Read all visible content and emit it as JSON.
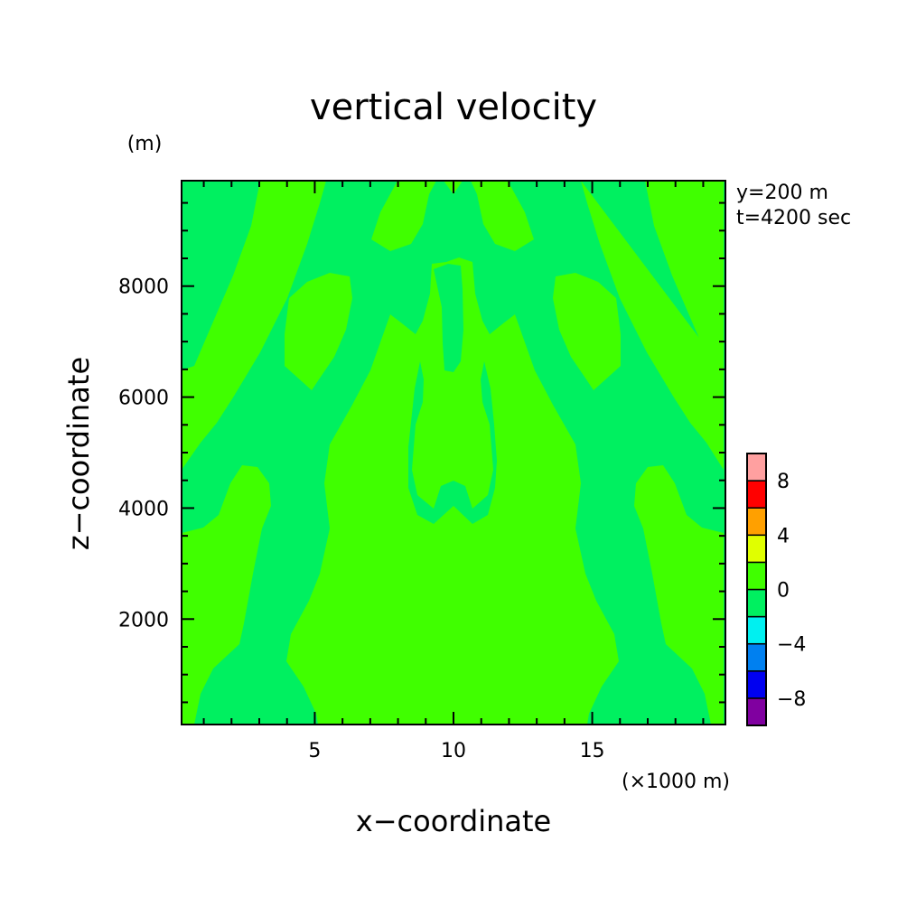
{
  "chart_data": {
    "type": "heatmap",
    "title": "vertical velocity",
    "xlabel": "x−coordinate",
    "ylabel": "z−coordinate",
    "x_unit": "(×1000 m)",
    "y_unit": "(m)",
    "annotations": [
      "y=200 m",
      "t=4200 sec"
    ],
    "xlim": [
      0.2,
      19.8
    ],
    "ylim": [
      100,
      9900
    ],
    "x_ticks": [
      5,
      10,
      15
    ],
    "y_ticks": [
      2000,
      4000,
      6000,
      8000
    ],
    "grid": false,
    "colorbar": {
      "levels": [
        -10,
        -8,
        -6,
        -4,
        -2,
        0,
        2,
        4,
        6,
        8,
        10
      ],
      "labels": [
        "−8",
        "−4",
        "0",
        "4",
        "8"
      ],
      "label_values": [
        -8,
        -4,
        0,
        4,
        8
      ],
      "colors": [
        "#8000a0",
        "#0000f0",
        "#0080f0",
        "#00f0f0",
        "#00f060",
        "#40ff00",
        "#e0ff00",
        "#ffa000",
        "#ff0000",
        "#ffa0a0"
      ]
    },
    "field": {
      "background_range": [
        -2,
        0
      ],
      "background_color": "#00f060",
      "positive_range": [
        0,
        2
      ],
      "positive_color": "#40ff00",
      "min_value_range": [
        -2,
        0
      ],
      "max_value_range": [
        0,
        2
      ]
    }
  }
}
